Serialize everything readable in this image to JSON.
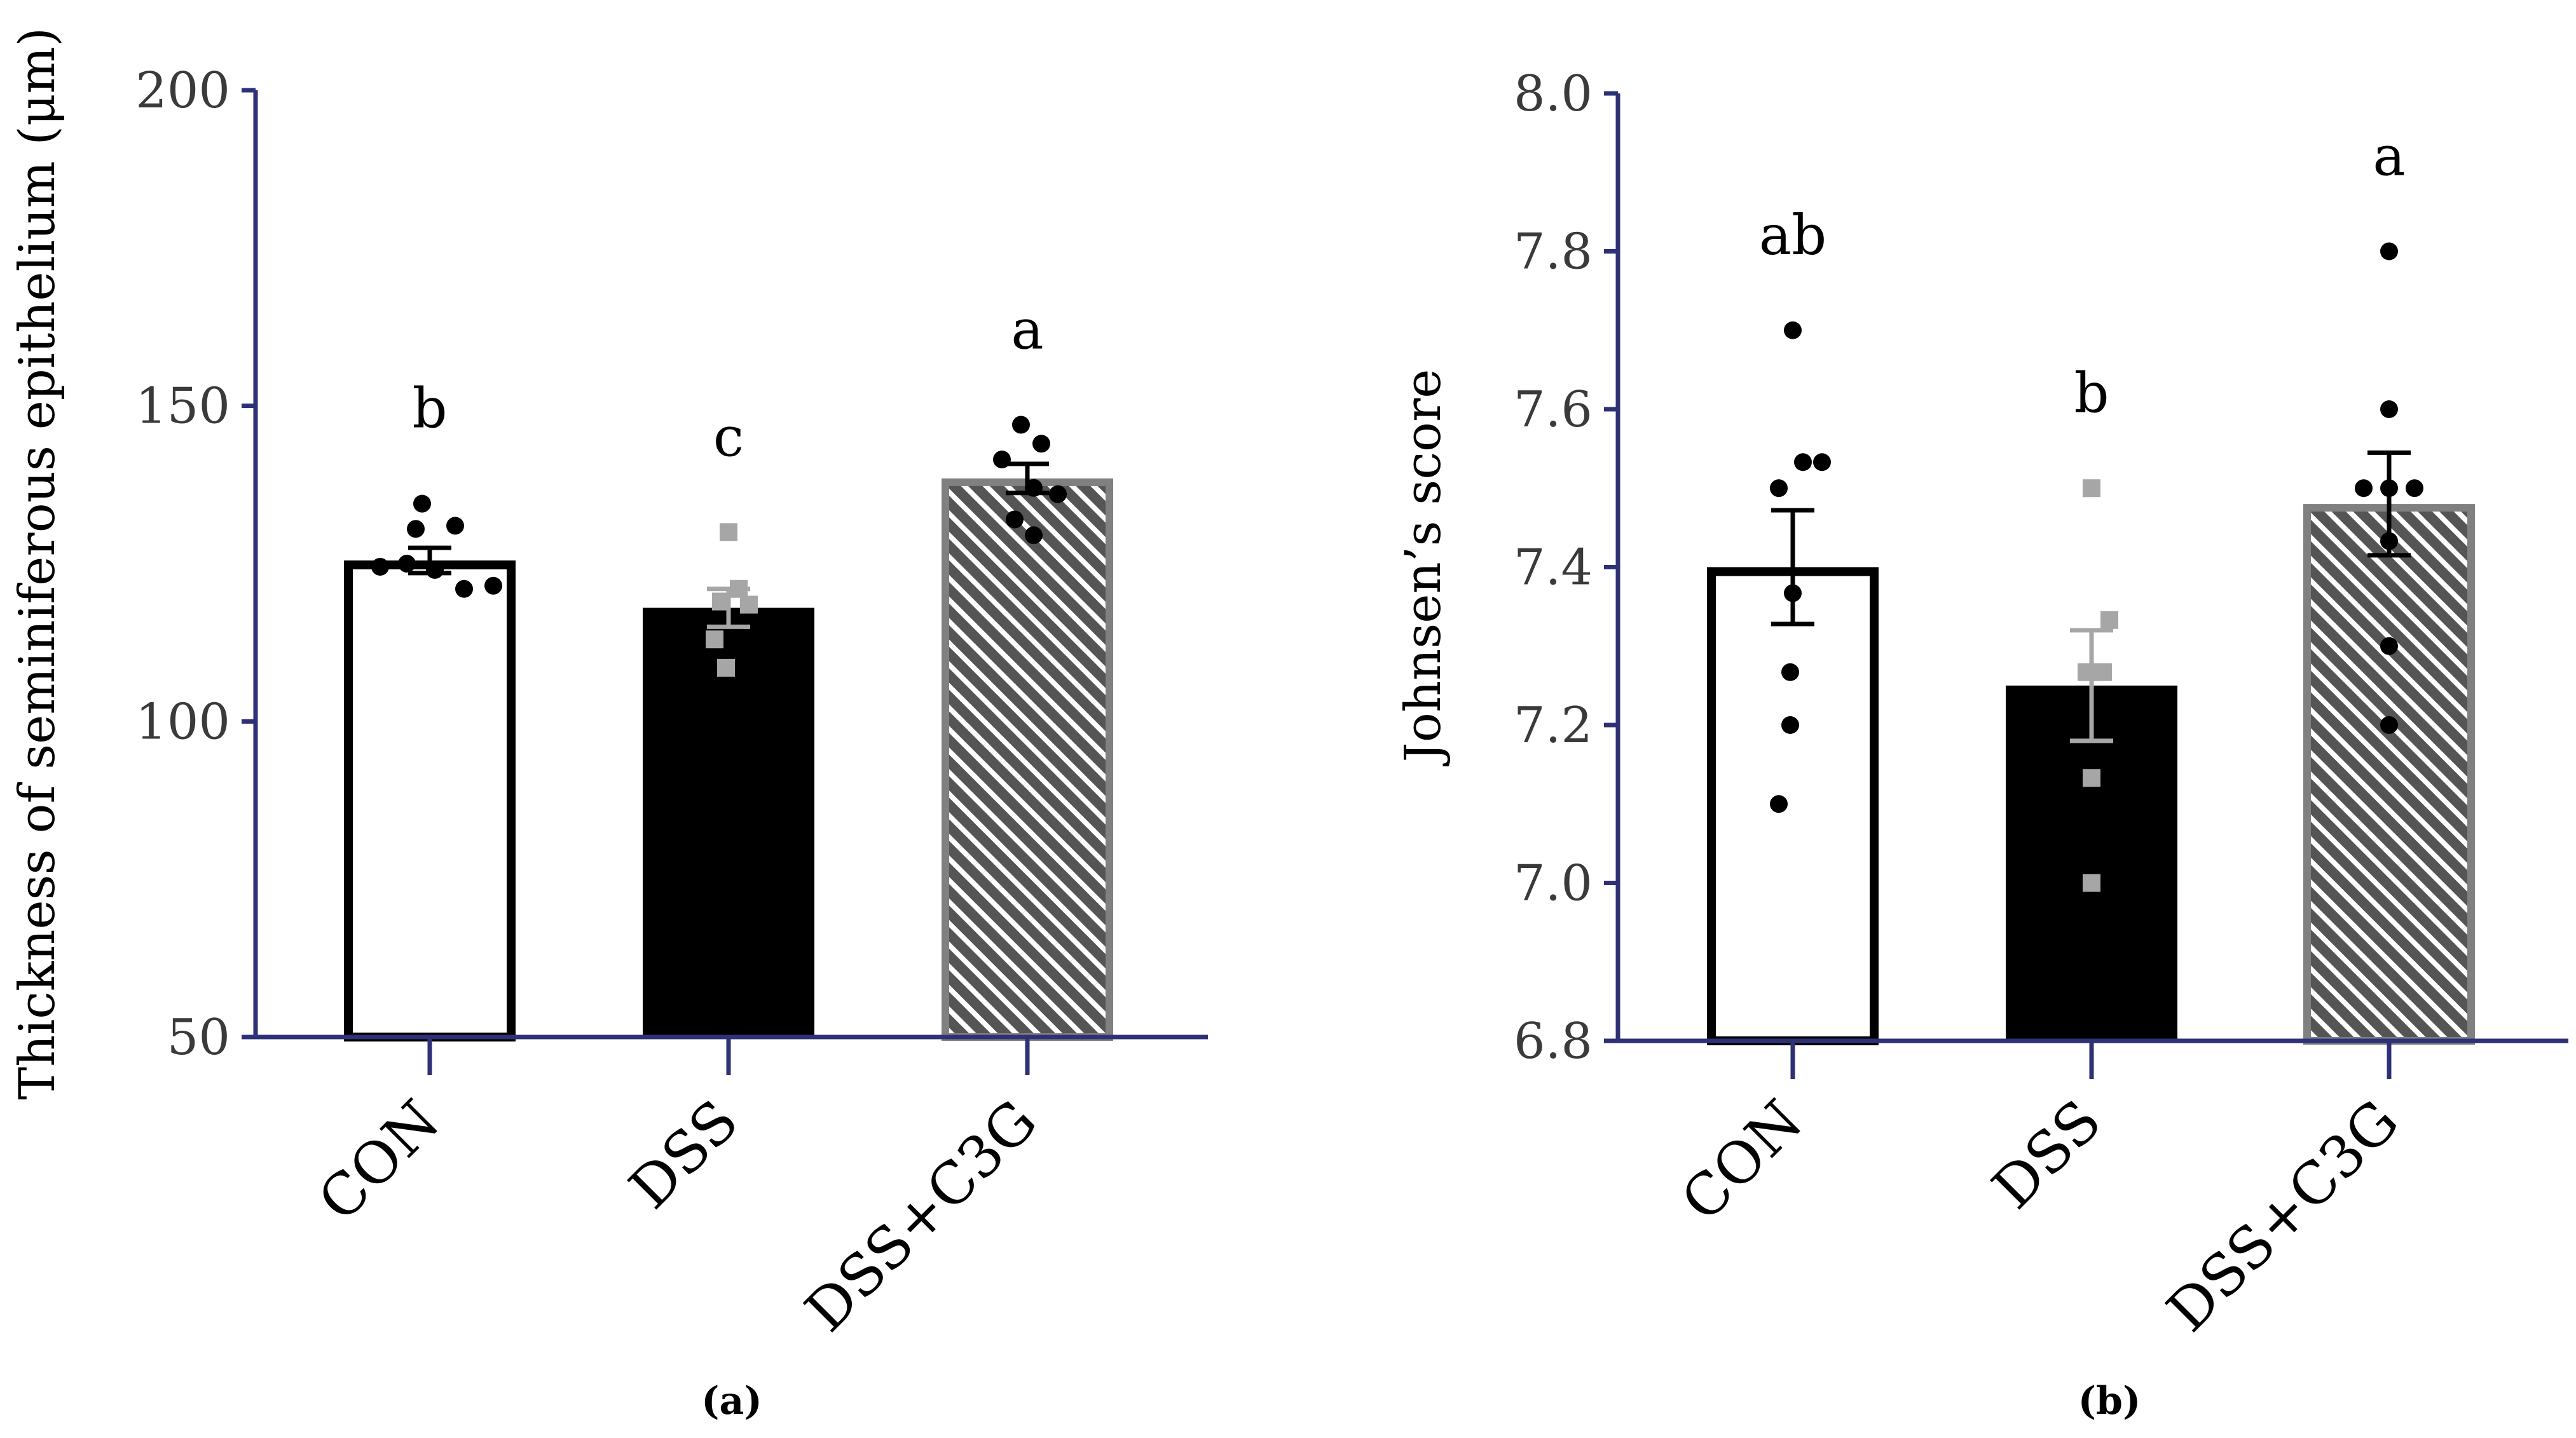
{
  "colors": {
    "axis": "#2e3175",
    "black": "#000000",
    "grey": "#808080",
    "light_grey": "#a6a6a6",
    "white": "#ffffff"
  },
  "chart_data": [
    {
      "type": "bar",
      "panel_label": "(a)",
      "title": "",
      "xlabel": "",
      "ylabel": "Thickness of  seminiferous epithelium  (μm)",
      "ylim": [
        50,
        200
      ],
      "yticks": [
        50,
        100,
        150,
        200
      ],
      "ytick_labels": [
        "50",
        "100",
        "150",
        "200"
      ],
      "categories": [
        "CON",
        "DSS",
        "DSS+C3G"
      ],
      "styles": [
        "white-fill",
        "black-fill",
        "hatched-grey"
      ],
      "means": [
        125.5,
        118,
        138.5
      ],
      "sem": [
        2,
        3,
        2.3
      ],
      "significance": [
        "b",
        "c",
        "a"
      ],
      "points": [
        [
          134.5,
          130.5,
          131,
          124.5,
          125,
          124,
          121,
          121.5
        ],
        [
          130,
          121,
          119,
          118.5,
          113,
          108.5
        ],
        [
          147,
          144,
          141.5,
          137,
          136,
          132,
          129.5
        ]
      ],
      "point_styles": [
        "black-circle",
        "grey-square",
        "black-circle"
      ]
    },
    {
      "type": "bar",
      "panel_label": "(b)",
      "title": "",
      "xlabel": "",
      "ylabel": "Johnsen’s score",
      "ylim": [
        6.8,
        8.0
      ],
      "yticks": [
        6.8,
        7.0,
        7.2,
        7.4,
        7.6,
        7.8,
        8.0
      ],
      "ytick_labels": [
        "6.8",
        "7.0",
        "7.2",
        "7.4",
        "7.6",
        "7.8",
        "8.0"
      ],
      "categories": [
        "CON",
        "DSS",
        "DSS+C3G"
      ],
      "styles": [
        "white-fill",
        "black-fill",
        "hatched-grey"
      ],
      "means": [
        7.4,
        7.25,
        7.48
      ],
      "sem": [
        0.072,
        0.07,
        0.065
      ],
      "significance": [
        "ab",
        "b",
        "a"
      ],
      "points": [
        [
          7.7,
          7.533,
          7.533,
          7.5,
          7.367,
          7.267,
          7.2,
          7.1
        ],
        [
          7.5,
          7.333,
          7.267,
          7.267,
          7.133,
          7.0
        ],
        [
          7.8,
          7.6,
          7.5,
          7.5,
          7.5,
          7.433,
          7.3,
          7.2
        ]
      ],
      "point_styles": [
        "black-circle",
        "grey-square",
        "black-circle"
      ]
    }
  ]
}
